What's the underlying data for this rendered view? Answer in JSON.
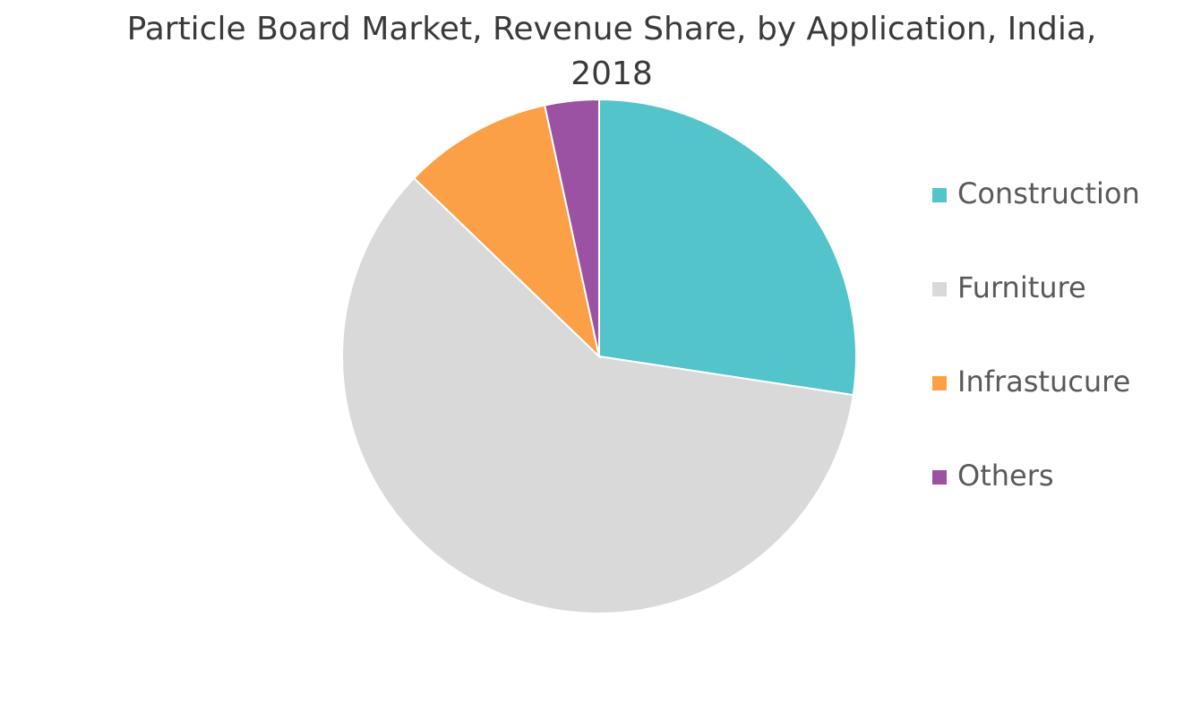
{
  "chart_data": {
    "type": "pie",
    "title": "Particle Board Market, Revenue Share, by Application, India, 2018",
    "categories": [
      "Construction",
      "Furniture",
      "Infrastucure",
      "Others"
    ],
    "values": [
      27.4,
      59.8,
      9.4,
      3.4
    ],
    "colors": [
      "#52c4ca",
      "#d9d9d9",
      "#fba046",
      "#9c52a2"
    ],
    "legend": "right"
  }
}
